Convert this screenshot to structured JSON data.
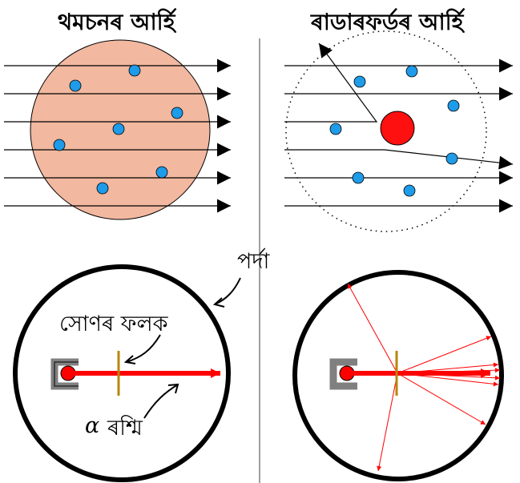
{
  "titles": {
    "thomson": "থমচনৰ আৰ্হি",
    "rutherford": "ৰাডাৰফৰ্ডৰ আৰ্হি"
  },
  "labels": {
    "screen": "পৰ্দা",
    "gold_foil": "সোণৰ ফলক",
    "alpha_symbol": "α",
    "alpha_ray": "ৰশ্মি"
  },
  "colors": {
    "thomson_sphere": "#f2b8a0",
    "electron": "#1e9be9",
    "nucleus": "#ff1010",
    "alpha_beam": "#ff0000",
    "foil": "#b8860b",
    "source_box": "#808080",
    "divider": "#a0a0a0"
  }
}
